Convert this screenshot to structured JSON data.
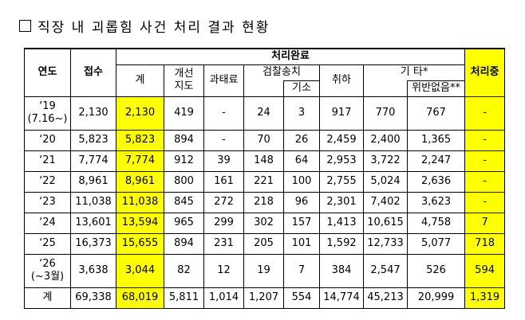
{
  "title": "직장 내 괴롭힘 사건 처리 결과 현황",
  "table": {
    "header": {
      "year": "연도",
      "received": "접수",
      "completed": "처리완료",
      "total": "계",
      "guidance": "개선\n지도",
      "fine": "과태료",
      "prosecution": "검찰송치",
      "indicted": "기소",
      "withdrawn": "취하",
      "other": "기 타*",
      "no_violation": "위반없음**",
      "in_progress": "처리중"
    },
    "rows": [
      [
        "‘19\n(7.16~)",
        "2,130",
        "2,130",
        "419",
        "-",
        "24",
        "3",
        "917",
        "770",
        "767",
        "-"
      ],
      [
        "‘20",
        "5,823",
        "5,823",
        "894",
        "-",
        "70",
        "26",
        "2,459",
        "2,400",
        "1,365",
        "-"
      ],
      [
        "‘21",
        "7,774",
        "7,774",
        "912",
        "39",
        "148",
        "64",
        "2,953",
        "3,722",
        "2,247",
        "-"
      ],
      [
        "‘22",
        "8,961",
        "8,961",
        "800",
        "161",
        "221",
        "100",
        "2,755",
        "5,024",
        "2,636",
        "-"
      ],
      [
        "‘23",
        "11,038",
        "11,038",
        "845",
        "272",
        "218",
        "96",
        "2,301",
        "7,402",
        "3,623",
        "-"
      ],
      [
        "‘24",
        "13,601",
        "13,594",
        "965",
        "299",
        "302",
        "157",
        "1,413",
        "10,615",
        "4,758",
        "7"
      ],
      [
        "‘25",
        "16,373",
        "15,655",
        "894",
        "231",
        "205",
        "101",
        "1,592",
        "12,733",
        "5,077",
        "718"
      ],
      [
        "‘26\n(~3월)",
        "3,638",
        "3,044",
        "82",
        "12",
        "19",
        "7",
        "384",
        "2,547",
        "526",
        "594"
      ],
      [
        "계",
        "69,338",
        "68,019",
        "5,811",
        "1,014",
        "1,207",
        "554",
        "14,774",
        "45,213",
        "20,999",
        "1,319"
      ]
    ]
  }
}
